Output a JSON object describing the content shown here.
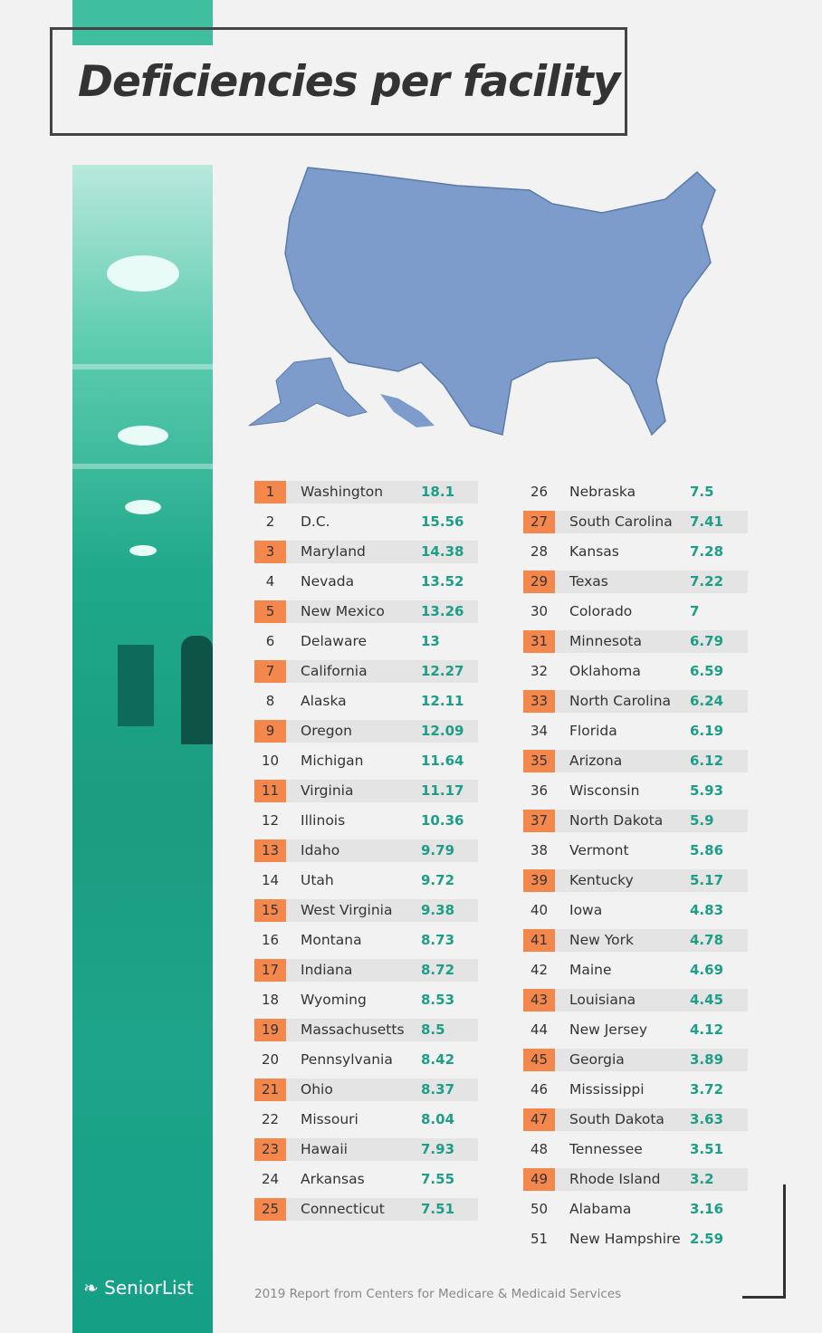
{
  "title": "Deficiencies per facility",
  "logo_text": "SeniorList",
  "source": "2019 Report from Centers for Medicare & Medicaid Services",
  "colors": {
    "teal": "#1fa88a",
    "orange": "#f4874b",
    "value_green": "#1d9e86",
    "map_blue": "#7d9ccb"
  },
  "chart_data": {
    "type": "table",
    "title": "Deficiencies per facility",
    "columns": [
      "rank",
      "state",
      "deficiencies_per_facility"
    ],
    "rows": [
      [
        1,
        "Washington",
        "18.1"
      ],
      [
        2,
        "D.C.",
        "15.56"
      ],
      [
        3,
        "Maryland",
        "14.38"
      ],
      [
        4,
        "Nevada",
        "13.52"
      ],
      [
        5,
        "New Mexico",
        "13.26"
      ],
      [
        6,
        "Delaware",
        "13"
      ],
      [
        7,
        "California",
        "12.27"
      ],
      [
        8,
        "Alaska",
        "12.11"
      ],
      [
        9,
        "Oregon",
        "12.09"
      ],
      [
        10,
        "Michigan",
        "11.64"
      ],
      [
        11,
        "Virginia",
        "11.17"
      ],
      [
        12,
        "Illinois",
        "10.36"
      ],
      [
        13,
        "Idaho",
        "9.79"
      ],
      [
        14,
        "Utah",
        "9.72"
      ],
      [
        15,
        "West Virginia",
        "9.38"
      ],
      [
        16,
        "Montana",
        "8.73"
      ],
      [
        17,
        "Indiana",
        "8.72"
      ],
      [
        18,
        "Wyoming",
        "8.53"
      ],
      [
        19,
        "Massachusetts",
        "8.5"
      ],
      [
        20,
        "Pennsylvania",
        "8.42"
      ],
      [
        21,
        "Ohio",
        "8.37"
      ],
      [
        22,
        "Missouri",
        "8.04"
      ],
      [
        23,
        "Hawaii",
        "7.93"
      ],
      [
        24,
        "Arkansas",
        "7.55"
      ],
      [
        25,
        "Connecticut",
        "7.51"
      ],
      [
        26,
        "Nebraska",
        "7.5"
      ],
      [
        27,
        "South Carolina",
        "7.41"
      ],
      [
        28,
        "Kansas",
        "7.28"
      ],
      [
        29,
        "Texas",
        "7.22"
      ],
      [
        30,
        "Colorado",
        "7"
      ],
      [
        31,
        "Minnesota",
        "6.79"
      ],
      [
        32,
        "Oklahoma",
        "6.59"
      ],
      [
        33,
        "North Carolina",
        "6.24"
      ],
      [
        34,
        "Florida",
        "6.19"
      ],
      [
        35,
        "Arizona",
        "6.12"
      ],
      [
        36,
        "Wisconsin",
        "5.93"
      ],
      [
        37,
        "North Dakota",
        "5.9"
      ],
      [
        38,
        "Vermont",
        "5.86"
      ],
      [
        39,
        "Kentucky",
        "5.17"
      ],
      [
        40,
        "Iowa",
        "4.83"
      ],
      [
        41,
        "New York",
        "4.78"
      ],
      [
        42,
        "Maine",
        "4.69"
      ],
      [
        43,
        "Louisiana",
        "4.45"
      ],
      [
        44,
        "New Jersey",
        "4.12"
      ],
      [
        45,
        "Georgia",
        "3.89"
      ],
      [
        46,
        "Mississippi",
        "3.72"
      ],
      [
        47,
        "South Dakota",
        "3.63"
      ],
      [
        48,
        "Tennessee",
        "3.51"
      ],
      [
        49,
        "Rhode Island",
        "3.2"
      ],
      [
        50,
        "Alabama",
        "3.16"
      ],
      [
        51,
        "New Hampshire",
        "2.59"
      ]
    ]
  }
}
